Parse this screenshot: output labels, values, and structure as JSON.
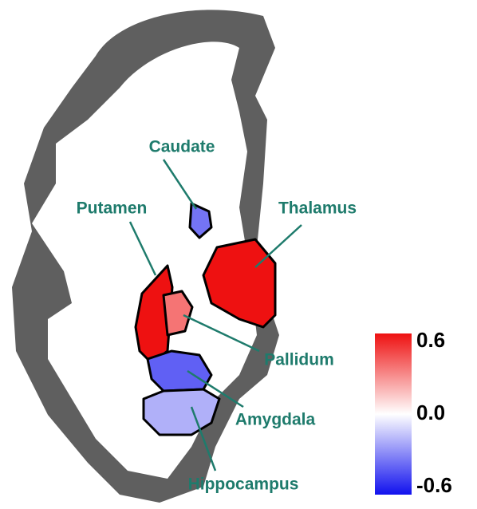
{
  "regions": [
    {
      "label": "Caudate",
      "value": -0.35
    },
    {
      "label": "Putamen",
      "value": 0.6
    },
    {
      "label": "Thalamus",
      "value": 0.6
    },
    {
      "label": "Pallidum",
      "value": 0.35
    },
    {
      "label": "Amygdala",
      "value": -0.4
    },
    {
      "label": "Hippocampus",
      "value": -0.2
    }
  ],
  "colorbar": {
    "lim": [
      -0.6,
      0.6
    ],
    "ticks": [
      0.6,
      {
        "value": 0,
        "label": "0.0"
      },
      -0.6
    ]
  }
}
